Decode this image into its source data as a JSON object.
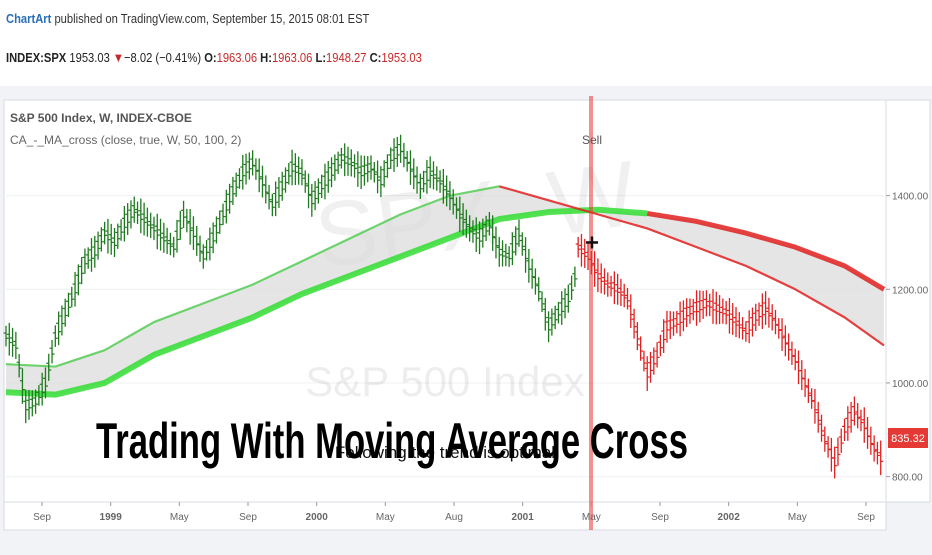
{
  "header": {
    "brand": "ChartArt",
    "published": " published on TradingView.com, September 15, 2015 08:01 EST",
    "symbol": "INDEX:SPX",
    "last": "1953.03",
    "down_arrow": "▼",
    "change": "−8.02 (−0.41%)",
    "open_label": "O:",
    "open": "1963.06",
    "high_label": "H:",
    "high": "1963.06",
    "low_label": "L:",
    "low": "1948.27",
    "close_label": "C:",
    "close": "1953.03"
  },
  "overlays": {
    "title": "Trading With Moving Average Cross",
    "subtitle": "Following the trend is optimal",
    "watermark_big": "SPX, W",
    "watermark_small": "S&P 500 Index",
    "sell_label": "Sell"
  },
  "chart_data": {
    "type": "bar",
    "title": "S&P 500 Index, W, INDEX-CBOE",
    "indicator": "CA_-_MA_cross (close, true, W, 50, 100, 2)",
    "x_ticks": [
      "Sep",
      "1999",
      "May",
      "Sep",
      "2000",
      "May",
      "Aug",
      "2001",
      "May",
      "Sep",
      "2002",
      "May",
      "Sep"
    ],
    "y_ticks": [
      "1400.00",
      "1200.00",
      "1000.00",
      "800.00"
    ],
    "ylim": [
      750,
      1600
    ],
    "last_price_label": "835.32",
    "signal": {
      "label": "Sell",
      "x": "May 2001",
      "y": 1300
    },
    "series": [
      {
        "name": "",
        "color": "#1e7a1e",
        "points": [
          [
            0,
            1100
          ],
          [
            4,
            1080
          ],
          [
            8,
            950
          ],
          [
            12,
            960
          ],
          [
            16,
            1000
          ],
          [
            20,
            1100
          ],
          [
            24,
            1150
          ],
          [
            28,
            1200
          ],
          [
            32,
            1260
          ],
          [
            36,
            1280
          ],
          [
            40,
            1320
          ],
          [
            44,
            1300
          ],
          [
            48,
            1340
          ],
          [
            52,
            1370
          ],
          [
            56,
            1350
          ],
          [
            60,
            1330
          ],
          [
            64,
            1310
          ],
          [
            68,
            1290
          ],
          [
            72,
            1360
          ],
          [
            76,
            1320
          ],
          [
            80,
            1270
          ],
          [
            84,
            1310
          ],
          [
            88,
            1360
          ],
          [
            92,
            1410
          ],
          [
            96,
            1450
          ],
          [
            100,
            1470
          ],
          [
            104,
            1430
          ],
          [
            108,
            1380
          ],
          [
            112,
            1420
          ],
          [
            116,
            1460
          ],
          [
            120,
            1450
          ],
          [
            124,
            1390
          ],
          [
            128,
            1420
          ],
          [
            132,
            1450
          ],
          [
            136,
            1480
          ],
          [
            140,
            1470
          ],
          [
            144,
            1450
          ],
          [
            148,
            1460
          ],
          [
            152,
            1430
          ],
          [
            156,
            1480
          ],
          [
            160,
            1500
          ],
          [
            164,
            1460
          ],
          [
            168,
            1420
          ],
          [
            172,
            1450
          ],
          [
            176,
            1430
          ],
          [
            180,
            1400
          ],
          [
            184,
            1360
          ],
          [
            188,
            1330
          ],
          [
            192,
            1310
          ],
          [
            196,
            1340
          ],
          [
            200,
            1280
          ],
          [
            204,
            1270
          ],
          [
            208,
            1320
          ],
          [
            212,
            1250
          ],
          [
            216,
            1200
          ],
          [
            220,
            1120
          ],
          [
            224,
            1150
          ],
          [
            228,
            1180
          ],
          [
            232,
            1250
          ]
        ]
      },
      {
        "name": "",
        "color": "#e02020",
        "points": [
          [
            232,
            1290
          ],
          [
            236,
            1270
          ],
          [
            240,
            1230
          ],
          [
            244,
            1210
          ],
          [
            248,
            1200
          ],
          [
            252,
            1180
          ],
          [
            256,
            1100
          ],
          [
            260,
            1020
          ],
          [
            264,
            1060
          ],
          [
            268,
            1120
          ],
          [
            272,
            1130
          ],
          [
            276,
            1150
          ],
          [
            280,
            1160
          ],
          [
            284,
            1170
          ],
          [
            288,
            1160
          ],
          [
            292,
            1150
          ],
          [
            296,
            1130
          ],
          [
            300,
            1110
          ],
          [
            304,
            1140
          ],
          [
            308,
            1160
          ],
          [
            312,
            1130
          ],
          [
            316,
            1090
          ],
          [
            320,
            1050
          ],
          [
            324,
            1000
          ],
          [
            328,
            950
          ],
          [
            332,
            880
          ],
          [
            336,
            830
          ],
          [
            340,
            900
          ],
          [
            344,
            940
          ],
          [
            348,
            910
          ],
          [
            352,
            860
          ],
          [
            356,
            830
          ]
        ]
      },
      {
        "name": "",
        "color": "#33dd33",
        "points": [
          [
            0,
            980
          ],
          [
            20,
            975
          ],
          [
            40,
            1000
          ],
          [
            60,
            1060
          ],
          [
            80,
            1100
          ],
          [
            100,
            1140
          ],
          [
            120,
            1190
          ],
          [
            140,
            1230
          ],
          [
            160,
            1270
          ],
          [
            180,
            1310
          ],
          [
            200,
            1350
          ],
          [
            220,
            1365
          ],
          [
            240,
            1370
          ],
          [
            260,
            1362
          ]
        ]
      },
      {
        "name": "",
        "color": "#55cc55",
        "points": [
          [
            0,
            1040
          ],
          [
            20,
            1035
          ],
          [
            40,
            1070
          ],
          [
            60,
            1130
          ],
          [
            80,
            1170
          ],
          [
            100,
            1210
          ],
          [
            120,
            1260
          ],
          [
            140,
            1310
          ],
          [
            160,
            1360
          ],
          [
            180,
            1400
          ],
          [
            200,
            1420
          ]
        ]
      },
      {
        "name": "",
        "color": "#e02020",
        "points": [
          [
            200,
            1420
          ],
          [
            220,
            1390
          ],
          [
            240,
            1360
          ],
          [
            260,
            1330
          ],
          [
            280,
            1290
          ],
          [
            300,
            1250
          ],
          [
            320,
            1200
          ],
          [
            340,
            1140
          ],
          [
            356,
            1080
          ]
        ]
      },
      {
        "name": "",
        "color": "#e02020",
        "points": [
          [
            260,
            1362
          ],
          [
            280,
            1345
          ],
          [
            300,
            1320
          ],
          [
            320,
            1290
          ],
          [
            340,
            1250
          ],
          [
            356,
            1200
          ]
        ]
      }
    ]
  }
}
